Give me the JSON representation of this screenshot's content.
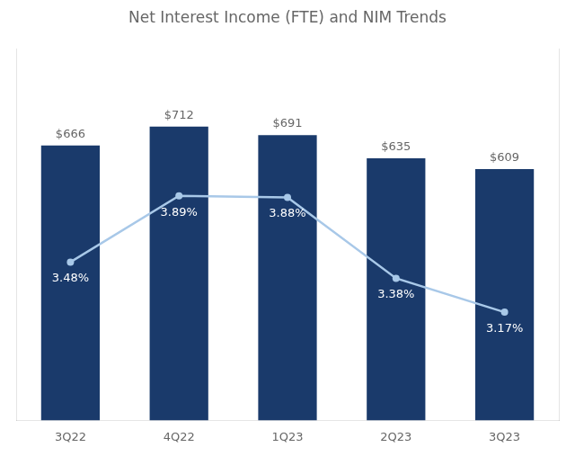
{
  "chart_data": {
    "type": "bar",
    "title": "Net Interest Income (FTE) and NIM Trends",
    "categories": [
      "3Q22",
      "4Q22",
      "1Q23",
      "2Q23",
      "3Q23"
    ],
    "series": [
      {
        "type": "bar",
        "color": "#1a3a6b",
        "values": [
          666,
          712,
          691,
          635,
          609
        ],
        "value_labels": [
          "$666",
          "$712",
          "$691",
          "$635",
          "$609"
        ]
      },
      {
        "type": "line",
        "color": "#a8c8e8",
        "marker": "circle",
        "axis": "y2",
        "values": [
          3.48,
          3.89,
          3.88,
          3.38,
          3.17
        ],
        "value_labels": [
          "3.48%",
          "3.89%",
          "3.88%",
          "3.38%",
          "3.17%"
        ]
      }
    ],
    "ylim": [
      0,
      900
    ],
    "y2lim": [
      2.5,
      4.8
    ],
    "data_labels": true,
    "tick_labels": "x",
    "grid": false
  }
}
